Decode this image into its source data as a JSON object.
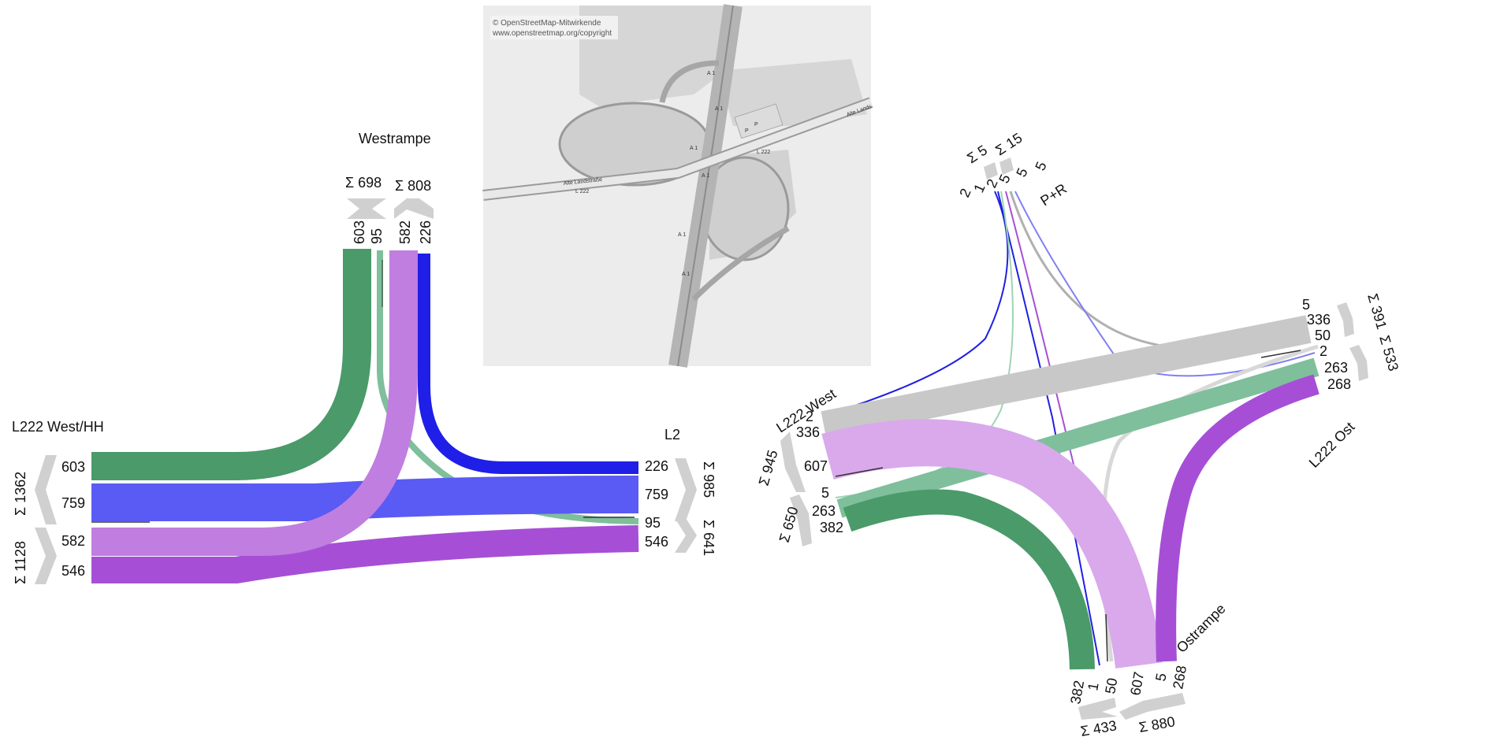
{
  "colors": {
    "green": "#4a9a6a",
    "blue": "#1f1fe8",
    "blue_light": "#5a5af5",
    "purple": "#a64fd6",
    "purple_light": "#c07ee0",
    "lilac": "#d9a9ec",
    "gray": "#c8c8c8",
    "mint": "#7fbf9c",
    "bracket": "#d0d0d0"
  },
  "left": {
    "west_label": "L222 West/HH",
    "rampe_label": "Westrampe",
    "east_label_fragment": "L2",
    "rampe_sums": [
      "Σ 698",
      "Σ 808"
    ],
    "rampe_values": [
      "603",
      "95",
      "582",
      "226"
    ],
    "west_values": [
      "603",
      "759",
      "582",
      "546"
    ],
    "west_sums": [
      "Σ 1362",
      "Σ 1128"
    ],
    "east_values": [
      "226",
      "759",
      "95",
      "546"
    ],
    "east_sums": [
      "Σ 985",
      "Σ 641"
    ]
  },
  "map": {
    "attribution_1": "© OpenStreetMap-Mitwirkende",
    "attribution_2": "www.openstreetmap.org/copyright",
    "road_labels": [
      "Alte Landstraße",
      "L 222",
      "L 222",
      "A 1",
      "A 1",
      "A 1",
      "A 1",
      "A 1",
      "A 1",
      "Alte Lands",
      "P",
      "P"
    ]
  },
  "right": {
    "west_label": "L222 West",
    "ost_label": "L222 Ost",
    "pr_label": "P+R",
    "ostrampe_label": "Ostrampe",
    "pr_sums": [
      "Σ 5",
      "Σ 15"
    ],
    "pr_values": [
      "2",
      "1",
      "2",
      "5",
      "5",
      "5"
    ],
    "west_values": [
      "2",
      "336",
      "607",
      "5",
      "263",
      "382"
    ],
    "west_sums": [
      "Σ 945",
      "Σ 650"
    ],
    "ost_values": [
      "5",
      "336",
      "50",
      "2",
      "263",
      "268"
    ],
    "ost_sums": [
      "Σ 391",
      "Σ 533"
    ],
    "bottom_values": [
      "382",
      "1",
      "50",
      "607",
      "5",
      "268"
    ],
    "bottom_sums": [
      "Σ 433",
      "Σ 880"
    ]
  }
}
